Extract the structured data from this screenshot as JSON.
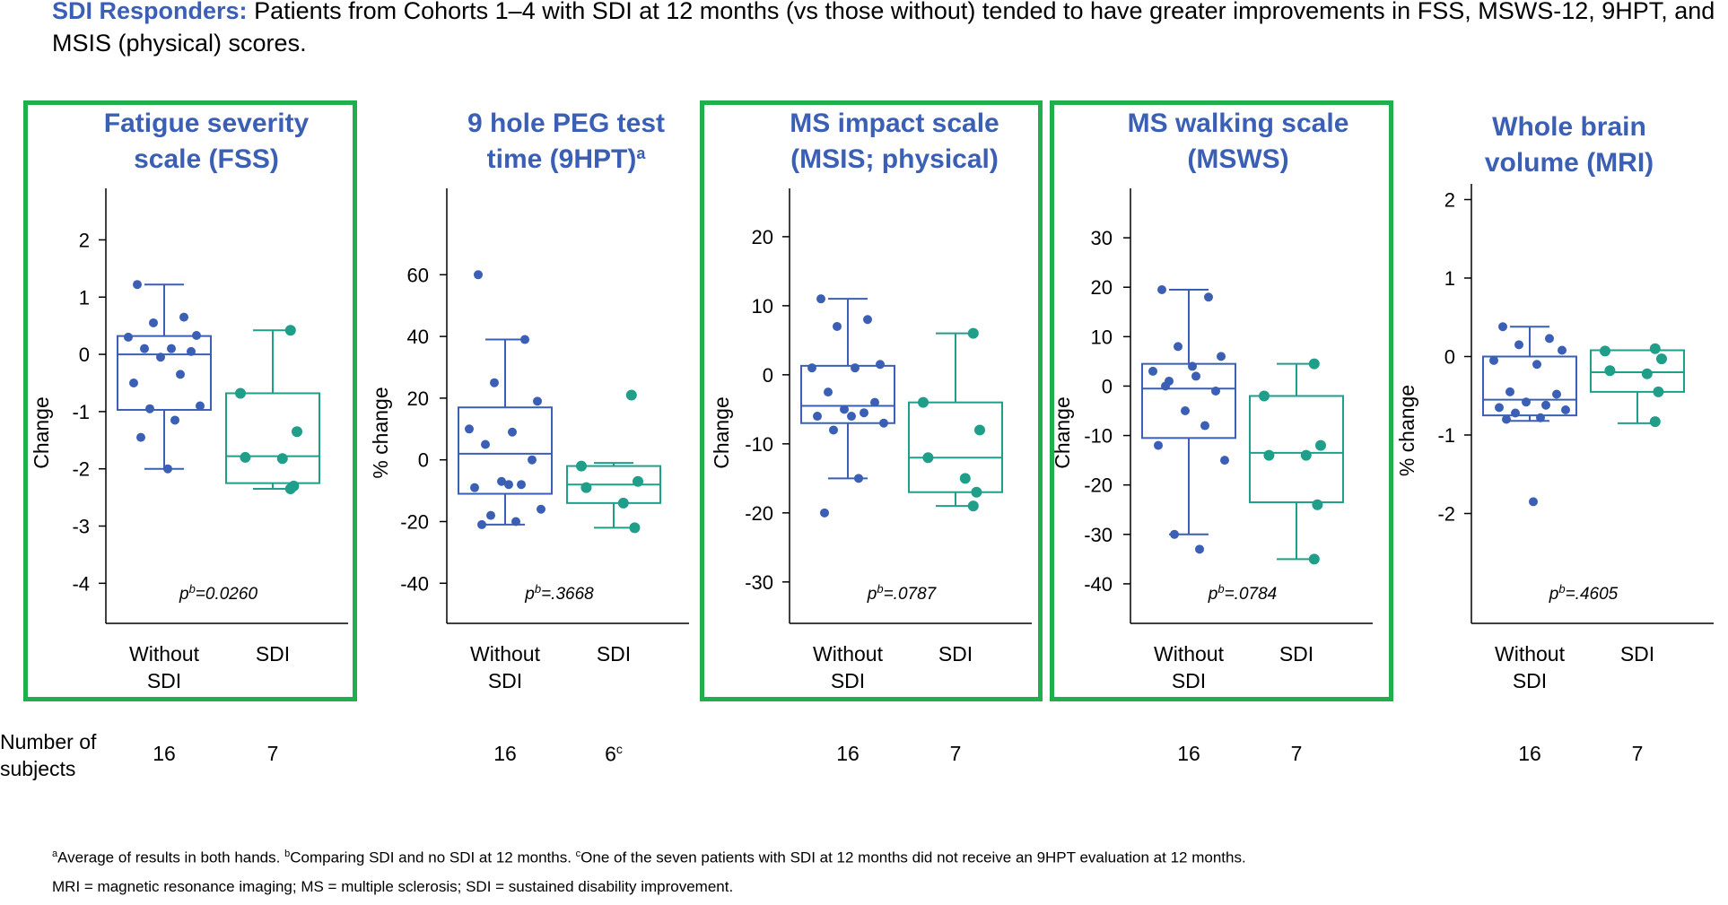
{
  "header": {
    "lead": "SDI Responders:",
    "text": "Patients from Cohorts 1–4 with SDI at 12 months (vs those without) tended to have greater improvements in FSS, MSWS-12, 9HPT, and MSIS (physical) scores."
  },
  "colors": {
    "without_sdi": "#3a5fb5",
    "sdi": "#1f9e8a",
    "title": "#3a5fb5",
    "highlight_border": "#1fb04d"
  },
  "counts": {
    "label_line1": "Number of",
    "label_line2": "subjects",
    "values": [
      [
        "16",
        "7"
      ],
      [
        "16",
        "6"
      ],
      [
        "16",
        "7"
      ],
      [
        "16",
        "7"
      ],
      [
        "16",
        "7"
      ]
    ],
    "marks": [
      [
        "",
        ""
      ],
      [
        "",
        "c"
      ],
      [
        "",
        ""
      ],
      [
        "",
        ""
      ],
      [
        "",
        ""
      ]
    ]
  },
  "footnotes": {
    "line1": [
      {
        "sup": "a",
        "text": "Average of results in both hands. "
      },
      {
        "sup": "b",
        "text": "Comparing SDI and no SDI at 12 months. "
      },
      {
        "sup": "c",
        "text": "One of the seven patients with SDI at 12 months did not receive an 9HPT evaluation at 12 months."
      }
    ],
    "line2": "MRI = magnetic resonance imaging; MS = multiple sclerosis; SDI = sustained disability improvement."
  },
  "chart_data": [
    {
      "type": "box",
      "highlighted": true,
      "title": [
        "Fatigue severity",
        "scale (FSS)"
      ],
      "ylabel": "Change",
      "ylim": [
        -4.7,
        2.9
      ],
      "yticks": [
        -4,
        -3,
        -2,
        -1,
        0,
        1,
        2
      ],
      "categories": [
        "Without SDI",
        "SDI"
      ],
      "p_label": "p",
      "p_sup": "b",
      "p_value": "=0.0260",
      "series": [
        {
          "name": "Without SDI",
          "box": {
            "min": -2.0,
            "q1": -0.97,
            "median": 0.0,
            "q3": 0.32,
            "max": 1.22
          },
          "points": [
            1.22,
            0.65,
            0.55,
            0.33,
            0.3,
            0.1,
            0.1,
            0.05,
            -0.05,
            -0.35,
            -0.5,
            -0.9,
            -0.95,
            -1.15,
            -1.45,
            -2.0
          ]
        },
        {
          "name": "SDI",
          "box": {
            "min": -2.35,
            "q1": -2.25,
            "median": -1.78,
            "q3": -0.68,
            "max": 0.42
          },
          "points": [
            0.42,
            -0.68,
            -1.35,
            -1.8,
            -1.82,
            -2.3,
            -2.35
          ]
        }
      ]
    },
    {
      "type": "box",
      "highlighted": false,
      "title": [
        "9 hole PEG test",
        "time (9HPT)"
      ],
      "title_sup": "a",
      "ylabel": "% change",
      "ylim": [
        -53,
        88
      ],
      "yticks": [
        -40,
        -20,
        0,
        20,
        40,
        60
      ],
      "categories": [
        "Without SDI",
        "SDI"
      ],
      "p_label": "p",
      "p_sup": "b",
      "p_value": "=.3668",
      "series": [
        {
          "name": "Without SDI",
          "box": {
            "min": -21,
            "q1": -11,
            "median": 2,
            "q3": 17,
            "max": 39
          },
          "points": [
            60,
            39,
            25,
            19,
            10,
            9,
            5,
            0,
            -7,
            -8,
            -9,
            -16,
            -18,
            -20,
            -21,
            -8
          ]
        },
        {
          "name": "SDI",
          "box": {
            "min": -22,
            "q1": -14,
            "median": -8,
            "q3": -2,
            "max": -1
          },
          "points": [
            21,
            -2,
            -7,
            -9,
            -14,
            -22
          ]
        }
      ]
    },
    {
      "type": "box",
      "highlighted": true,
      "title": [
        "MS impact scale",
        "(MSIS; physical)"
      ],
      "ylabel": "Change",
      "ylim": [
        -36,
        27
      ],
      "yticks": [
        -30,
        -20,
        -10,
        0,
        10,
        20
      ],
      "categories": [
        "Without SDI",
        "SDI"
      ],
      "p_label": "p",
      "p_sup": "b",
      "p_value": "=.0787",
      "series": [
        {
          "name": "Without SDI",
          "box": {
            "min": -15,
            "q1": -7,
            "median": -4.5,
            "q3": 1.3,
            "max": 11
          },
          "points": [
            11,
            8,
            7,
            1.5,
            1,
            1,
            -2.5,
            -4,
            -5,
            -5.5,
            -6,
            -7,
            -8,
            -15,
            -20,
            -6
          ]
        },
        {
          "name": "SDI",
          "box": {
            "min": -19,
            "q1": -17,
            "median": -12,
            "q3": -4,
            "max": 6
          },
          "points": [
            6,
            -4,
            -8,
            -12,
            -15,
            -17,
            -19
          ]
        }
      ]
    },
    {
      "type": "box",
      "highlighted": true,
      "title": [
        "MS walking scale",
        "(MSWS)"
      ],
      "ylabel": "Change",
      "ylim": [
        -48,
        40
      ],
      "yticks": [
        -40,
        -30,
        -20,
        -10,
        0,
        10,
        20,
        30
      ],
      "categories": [
        "Without SDI",
        "SDI"
      ],
      "p_label": "p",
      "p_sup": "b",
      "p_value": "=.0784",
      "series": [
        {
          "name": "Without SDI",
          "box": {
            "min": -30,
            "q1": -10.5,
            "median": -0.5,
            "q3": 4.5,
            "max": 19.5
          },
          "points": [
            19.5,
            18,
            8,
            6,
            3,
            2,
            1,
            -1,
            -5,
            -8,
            -12,
            -15,
            -30,
            -33,
            0,
            4
          ]
        },
        {
          "name": "SDI",
          "box": {
            "min": -35,
            "q1": -23.5,
            "median": -13.5,
            "q3": -2,
            "max": 4.5
          },
          "points": [
            4.5,
            -2,
            -12,
            -14,
            -14,
            -24,
            -35
          ]
        }
      ]
    },
    {
      "type": "box",
      "highlighted": false,
      "title": [
        "Whole brain",
        "volume (MRI)"
      ],
      "ylabel": "% change",
      "ylim": [
        -3.4,
        2.2
      ],
      "yticks": [
        -2,
        -1,
        0,
        1,
        2
      ],
      "categories": [
        "Without SDI",
        "SDI"
      ],
      "p_label": "p",
      "p_sup": "b",
      "p_value": "=.4605",
      "series": [
        {
          "name": "Without SDI",
          "box": {
            "min": -0.82,
            "q1": -0.75,
            "median": -0.55,
            "q3": 0.0,
            "max": 0.38
          },
          "points": [
            0.38,
            0.23,
            0.15,
            0.08,
            -0.05,
            -0.1,
            -0.45,
            -0.48,
            -0.58,
            -0.62,
            -0.65,
            -0.68,
            -0.72,
            -0.78,
            -0.8,
            -1.85
          ]
        },
        {
          "name": "SDI",
          "box": {
            "min": -0.85,
            "q1": -0.45,
            "median": -0.2,
            "q3": 0.08,
            "max": 0.08
          },
          "points": [
            0.1,
            0.07,
            -0.03,
            -0.18,
            -0.22,
            -0.45,
            -0.83
          ]
        }
      ]
    }
  ]
}
